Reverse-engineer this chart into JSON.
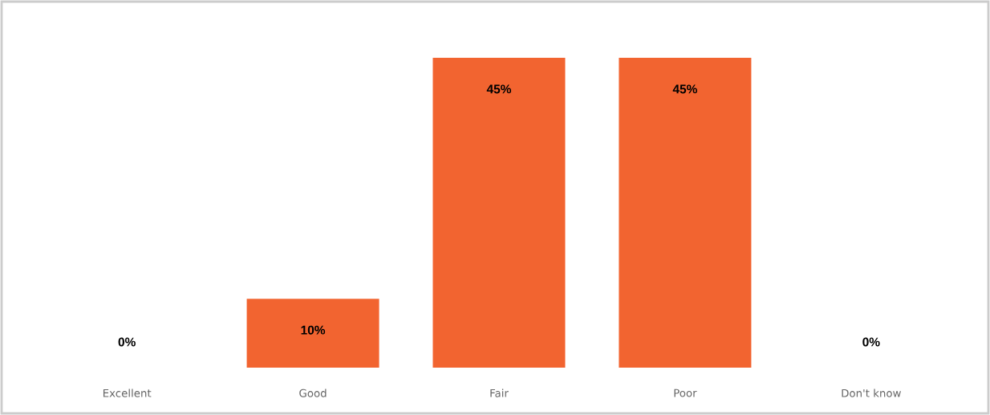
{
  "chart_data": {
    "type": "bar",
    "categories": [
      "Excellent",
      "Good",
      "Fair",
      "Poor",
      "Don't know"
    ],
    "values": [
      0,
      10,
      45,
      45,
      0
    ],
    "value_labels": [
      "0%",
      "10%",
      "45%",
      "45%",
      "0%"
    ],
    "color": "#f26430"
  }
}
